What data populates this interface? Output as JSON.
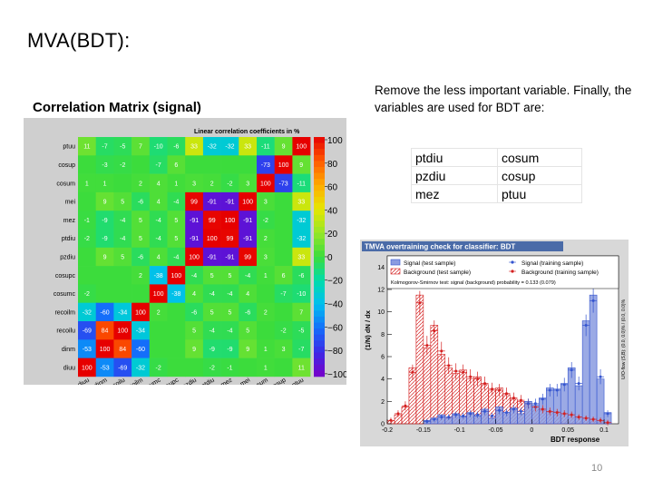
{
  "slide": {
    "title": "MVA(BDT):",
    "body_text": "Remove the less important variable. Finally, the variables are used for BDT are:",
    "variables": [
      [
        "ptdiu",
        "cosum"
      ],
      [
        "pzdiu",
        "cosup"
      ],
      [
        "mez",
        "ptuu"
      ]
    ],
    "page_number": "10"
  },
  "correlation_matrix": {
    "title": "Correlation Matrix (signal)",
    "subtitle": "Linear correlation coefficients in %",
    "variables": [
      "diuu",
      "dinm",
      "recoilu",
      "recoilm",
      "cosumc",
      "cosupc",
      "pzdiu",
      "ptdiu",
      "mez",
      "mei",
      "cosum",
      "cosup",
      "ptuu"
    ],
    "colorbar_ticks": [
      "100",
      "80",
      "60",
      "40",
      "20",
      "0",
      "−20",
      "−40",
      "−60",
      "−80",
      "−100"
    ],
    "cells_by_row_top_to_bottom": [
      [
        "11",
        "-7",
        "-5",
        "7",
        "-10",
        "-6",
        "33",
        "-32",
        "-32",
        "33",
        "-11",
        "9",
        "100"
      ],
      [
        "",
        "-3",
        "-2",
        "",
        "-7",
        "6",
        "",
        "",
        "",
        "",
        "-73",
        "100",
        "9"
      ],
      [
        "1",
        "1",
        "",
        "2",
        "4",
        "1",
        "3",
        "2",
        "-2",
        "3",
        "100",
        "-73",
        "-11"
      ],
      [
        "",
        "9",
        "5",
        "-6",
        "4",
        "-4",
        "99",
        "-91",
        "-91",
        "100",
        "3",
        "",
        "33"
      ],
      [
        "-1",
        "-9",
        "-4",
        "5",
        "-4",
        "5",
        "-91",
        "99",
        "100",
        "-91",
        "-2",
        "",
        "-32"
      ],
      [
        "-2",
        "-9",
        "-4",
        "5",
        "-4",
        "5",
        "-91",
        "100",
        "99",
        "-91",
        "2",
        "",
        "-32"
      ],
      [
        "",
        "9",
        "5",
        "-6",
        "4",
        "-4",
        "100",
        "-91",
        "-91",
        "99",
        "3",
        "",
        "33"
      ],
      [
        "",
        "",
        "",
        "2",
        "-38",
        "100",
        "-4",
        "5",
        "5",
        "-4",
        "1",
        "6",
        "-6"
      ],
      [
        "-2",
        "",
        "",
        "",
        "100",
        "-38",
        "4",
        "-4",
        "-4",
        "4",
        "",
        "-7",
        "-10"
      ],
      [
        "-32",
        "-60",
        "-34",
        "100",
        "2",
        "",
        "-6",
        "5",
        "5",
        "-6",
        "2",
        "",
        "7"
      ],
      [
        "-69",
        "84",
        "100",
        "-34",
        "",
        "",
        "5",
        "-4",
        "-4",
        "5",
        "",
        "-2",
        "-5"
      ],
      [
        "-53",
        "100",
        "84",
        "-60",
        "",
        "",
        "9",
        "-9",
        "-9",
        "9",
        "1",
        "3",
        "-7"
      ],
      [
        "100",
        "-53",
        "-69",
        "-32",
        "-2",
        "",
        "",
        "-2",
        "-1",
        "",
        "1",
        "",
        "11"
      ]
    ]
  },
  "overtraining_plot": {
    "title": "TMVA overtraining check for classifier: BDT",
    "legend": [
      "Signal (test sample)",
      "Signal (training sample)",
      "Background (test sample)",
      "Background (training sample)"
    ],
    "ks_text": "Kolmogorov-Smirnov test: signal (background) probability = 0.133 (0.079)",
    "xlabel": "BDT response",
    "ylabel": "(1/N) dN / dx",
    "right_label": "U/O-flow (S,B): (0.0, 0.0)% / (0.0, 0.0)%",
    "x_ticks": [
      "-0.2",
      "-0.15",
      "-0.1",
      "-0.05",
      "0",
      "0.05",
      "0.1"
    ],
    "y_ticks": [
      "0",
      "2",
      "4",
      "6",
      "8",
      "10",
      "12",
      "14"
    ],
    "colors": {
      "signal": "#3555cf",
      "signal_fill": "#8a9be0",
      "background": "#d42020"
    }
  },
  "chart_data": {
    "type": "bar",
    "title": "TMVA overtraining check for classifier: BDT",
    "xlabel": "BDT response",
    "ylabel": "(1/N) dN / dx",
    "xlim": [
      -0.2,
      0.12
    ],
    "ylim": [
      0,
      15
    ],
    "bin_centers": [
      -0.195,
      -0.185,
      -0.175,
      -0.165,
      -0.155,
      -0.145,
      -0.135,
      -0.125,
      -0.115,
      -0.105,
      -0.095,
      -0.085,
      -0.075,
      -0.065,
      -0.055,
      -0.045,
      -0.035,
      -0.025,
      -0.015,
      -0.005,
      0.005,
      0.015,
      0.025,
      0.035,
      0.045,
      0.055,
      0.065,
      0.075,
      0.085,
      0.095,
      0.105
    ],
    "series": [
      {
        "name": "Signal (test sample)",
        "values": [
          0,
          0,
          0,
          0,
          0,
          0.3,
          0.5,
          0.8,
          0.5,
          0.9,
          0.6,
          1.0,
          0.7,
          1.3,
          0.5,
          1.5,
          1.0,
          1.4,
          0.9,
          2.0,
          1.7,
          2.3,
          3.2,
          3.1,
          3.6,
          5.0,
          3.4,
          9.2,
          11.5,
          4.0,
          1.0
        ]
      },
      {
        "name": "Signal (training sample)",
        "values": [
          0,
          0,
          0,
          0,
          0,
          0.2,
          0.4,
          0.6,
          0.6,
          0.8,
          0.7,
          0.9,
          0.8,
          1.1,
          0.7,
          1.2,
          1.0,
          1.3,
          1.1,
          1.8,
          1.8,
          2.2,
          3.0,
          3.0,
          3.5,
          4.8,
          3.6,
          8.8,
          11.0,
          4.2,
          0.9
        ]
      },
      {
        "name": "Background (test sample)",
        "values": [
          0.3,
          0.8,
          1.5,
          5.0,
          11.5,
          6.8,
          8.8,
          6.2,
          5.0,
          4.5,
          4.8,
          4.0,
          4.2,
          3.5,
          3.0,
          3.2,
          2.6,
          2.2,
          2.0,
          1.7,
          1.5,
          1.2,
          1.0,
          1.1,
          0.9,
          0.8,
          0.6,
          0.5,
          0.4,
          0.3,
          0.1
        ]
      },
      {
        "name": "Background (training sample)",
        "values": [
          0.3,
          0.9,
          1.6,
          4.6,
          10.8,
          7.0,
          8.3,
          6.5,
          5.2,
          4.7,
          4.6,
          4.2,
          4.0,
          3.6,
          3.1,
          3.0,
          2.7,
          2.3,
          2.1,
          1.8,
          1.5,
          1.3,
          1.1,
          1.0,
          0.9,
          0.8,
          0.6,
          0.5,
          0.4,
          0.3,
          0.1
        ]
      }
    ]
  }
}
